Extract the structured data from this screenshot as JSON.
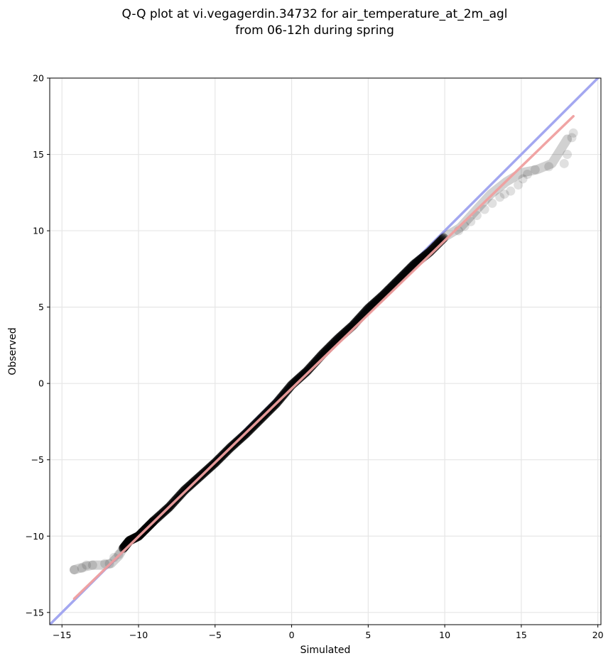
{
  "chart_data": {
    "type": "scatter",
    "title_line1": "Q-Q plot at vi.vegagerdin.34732 for air_temperature_at_2m_agl",
    "title_line2": "from 06-12h during spring",
    "xlabel": "Simulated",
    "ylabel": "Observed",
    "xlim": [
      -15.8,
      20.2
    ],
    "ylim": [
      -15.8,
      20
    ],
    "xticks": [
      -15,
      -10,
      -5,
      0,
      5,
      10,
      15,
      20
    ],
    "yticks": [
      -15,
      -10,
      -5,
      0,
      5,
      10,
      15,
      20
    ],
    "xtick_labels": [
      "−15",
      "−10",
      "−5",
      "0",
      "5",
      "10",
      "15",
      "20"
    ],
    "ytick_labels": [
      "−15",
      "−10",
      "−5",
      "0",
      "5",
      "10",
      "15",
      "20"
    ],
    "grid": true,
    "identity_line": {
      "x": [
        -15.8,
        20.2
      ],
      "y": [
        -15.8,
        20.2
      ],
      "color": "#a3a7f0"
    },
    "fit_line": {
      "x": [
        -14.2,
        18.4
      ],
      "y": [
        -14.1,
        17.5
      ],
      "color": "#f0a0a0"
    },
    "quantile_curve": {
      "x": [
        -14.2,
        -13.5,
        -13.0,
        -12.3,
        -11.8,
        -11.3,
        -11.0,
        -10.6,
        -10.0,
        -9.5,
        -9.0,
        -8.0,
        -7.0,
        -6.0,
        -5.0,
        -4.0,
        -3.0,
        -2.0,
        -1.0,
        0.0,
        1.0,
        2.0,
        3.0,
        4.0,
        5.0,
        6.0,
        7.0,
        8.0,
        9.0,
        10.0,
        11.0,
        12.0,
        13.0,
        14.0,
        15.0,
        16.0,
        17.0,
        18.0
      ],
      "y": [
        -12.2,
        -12.0,
        -11.9,
        -11.9,
        -11.8,
        -11.3,
        -10.8,
        -10.3,
        -10.0,
        -9.5,
        -9.0,
        -8.1,
        -7.0,
        -6.1,
        -5.2,
        -4.2,
        -3.3,
        -2.3,
        -1.3,
        -0.1,
        0.8,
        1.9,
        2.9,
        3.8,
        4.9,
        5.8,
        6.8,
        7.8,
        8.6,
        9.6,
        10.2,
        11.3,
        12.4,
        13.2,
        13.8,
        14.0,
        14.4,
        16.0
      ]
    },
    "tail_points": {
      "x": [
        -14.2,
        -13.7,
        -13.4,
        -13.0,
        -12.2,
        -11.9,
        -11.6,
        -11.3,
        10.9,
        11.3,
        11.7,
        12.1,
        12.6,
        13.1,
        13.6,
        13.9,
        14.3,
        14.8,
        15.1,
        15.4,
        15.9,
        16.8,
        17.8,
        18.0,
        18.3,
        18.4
      ],
      "y": [
        -12.2,
        -12.1,
        -11.9,
        -11.9,
        -11.8,
        -11.8,
        -11.4,
        -11.2,
        10.0,
        10.3,
        10.6,
        11.0,
        11.4,
        11.8,
        12.2,
        12.4,
        12.6,
        13.0,
        13.4,
        13.7,
        14.0,
        14.2,
        14.4,
        15.0,
        16.1,
        16.4
      ]
    }
  }
}
